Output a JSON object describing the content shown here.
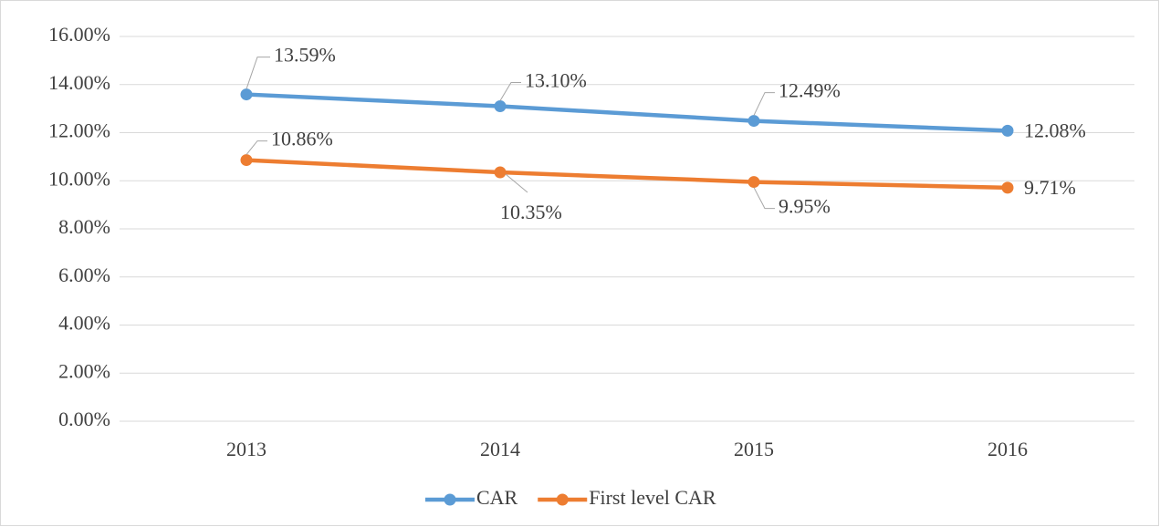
{
  "chart_data": {
    "type": "line",
    "categories": [
      "2013",
      "2014",
      "2015",
      "2016"
    ],
    "series": [
      {
        "name": "CAR",
        "color": "#5b9bd5",
        "values": [
          13.59,
          13.1,
          12.49,
          12.08
        ],
        "value_labels": [
          "13.59%",
          "13.10%",
          "12.49%",
          "12.08%"
        ]
      },
      {
        "name": "First level CAR",
        "color": "#ed7d31",
        "values": [
          10.86,
          10.35,
          9.95,
          9.71
        ],
        "value_labels": [
          "10.86%",
          "10.35%",
          "9.95%",
          "9.71%"
        ]
      }
    ],
    "ylim": [
      0,
      16
    ],
    "yticks": [
      {
        "value": 0,
        "label": "0.00%"
      },
      {
        "value": 2,
        "label": "2.00%"
      },
      {
        "value": 4,
        "label": "4.00%"
      },
      {
        "value": 6,
        "label": "6.00%"
      },
      {
        "value": 8,
        "label": "8.00%"
      },
      {
        "value": 10,
        "label": "10.00%"
      },
      {
        "value": 12,
        "label": "12.00%"
      },
      {
        "value": 14,
        "label": "14.00%"
      },
      {
        "value": 16,
        "label": "16.00%"
      }
    ],
    "grid": true,
    "legend": "bottom"
  }
}
